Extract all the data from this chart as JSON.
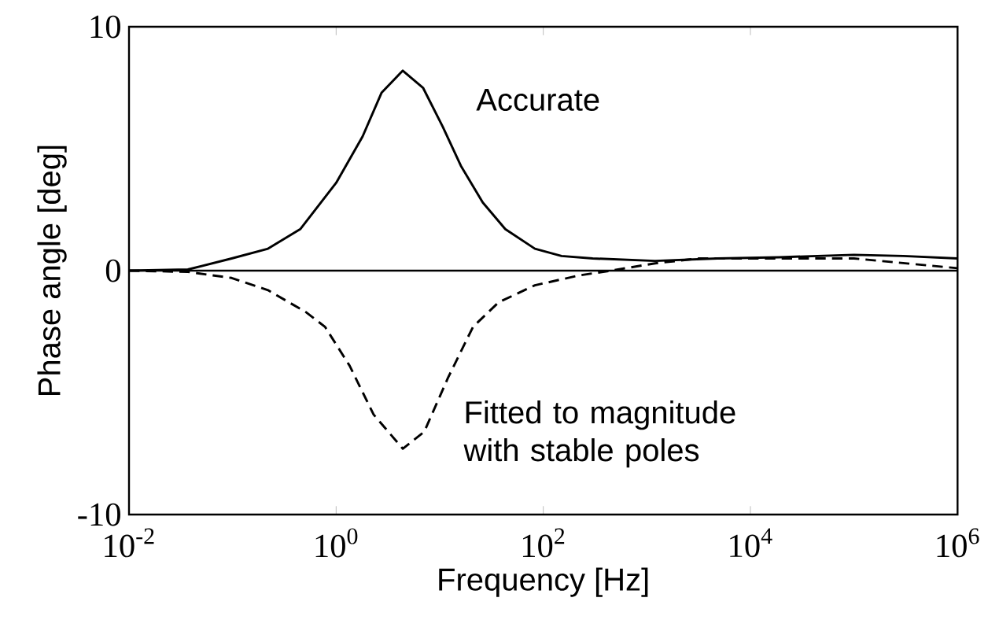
{
  "chart_data": {
    "type": "line",
    "xlabel": "Frequency [Hz]",
    "ylabel": "Phase angle [deg]",
    "log": "x",
    "xlim": [
      0.01,
      1000000
    ],
    "ylim": [
      -10,
      10
    ],
    "xticks": [
      {
        "value": 0.01,
        "label": "10$^{-2}$"
      },
      {
        "value": 1,
        "label": "10$^{0}$"
      },
      {
        "value": 100,
        "label": "10$^{2}$"
      },
      {
        "value": 10000,
        "label": "10$^{4}$"
      },
      {
        "value": 1000000,
        "label": "10$^{6}$"
      }
    ],
    "yticks": [
      -10,
      0,
      10
    ],
    "grid": false,
    "marker": "none",
    "ref_lines": [
      {
        "axis": "y",
        "value": 0,
        "color": "#000000"
      }
    ],
    "series": [
      {
        "color": "#000000",
        "line_style": "solid",
        "x": [
          0.01,
          0.037,
          0.098,
          0.22,
          0.45,
          1,
          1.8,
          2.75,
          4.4,
          6.9,
          10.7,
          16,
          26,
          43,
          83,
          150,
          300,
          1200,
          4800,
          19000,
          100000,
          300000,
          1000000
        ],
        "values": [
          0,
          0.05,
          0.5,
          0.9,
          1.7,
          3.6,
          5.5,
          7.3,
          8.2,
          7.5,
          5.9,
          4.3,
          2.8,
          1.7,
          0.9,
          0.6,
          0.5,
          0.4,
          0.5,
          0.55,
          0.65,
          0.6,
          0.5
        ]
      },
      {
        "color": "#000000",
        "line_style": "dashed",
        "x": [
          0.01,
          0.037,
          0.098,
          0.22,
          0.51,
          0.78,
          1.35,
          2.3,
          4.4,
          7.1,
          12,
          21,
          37,
          83,
          220,
          450,
          1200,
          3200,
          19000,
          100000,
          1000000
        ],
        "values": [
          0,
          -0.05,
          -0.3,
          -0.8,
          -1.7,
          -2.3,
          -3.9,
          -5.9,
          -7.3,
          -6.6,
          -4.4,
          -2.3,
          -1.3,
          -0.6,
          -0.2,
          0,
          0.3,
          0.5,
          0.5,
          0.5,
          0.1
        ]
      }
    ],
    "annotations": [
      "Accurate",
      "Fitted to magnitude with stable poles"
    ]
  }
}
